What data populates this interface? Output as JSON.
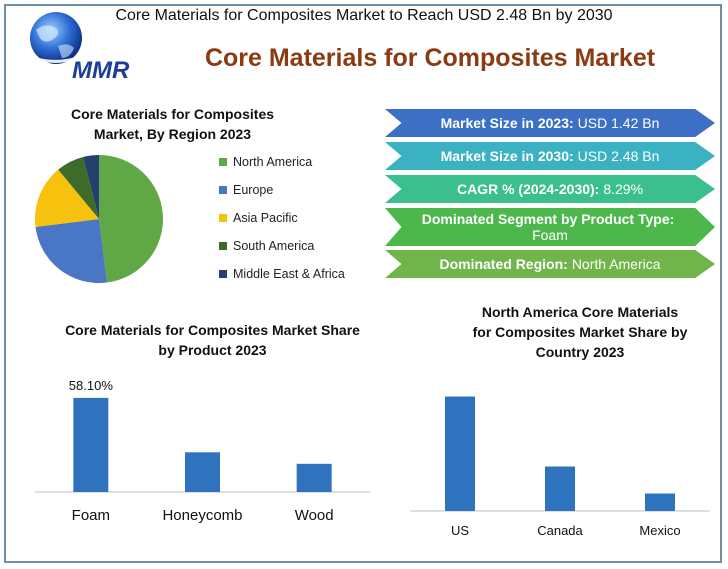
{
  "header": {
    "top_title": "Core Materials for Composites Market to Reach USD 2.48 Bn by 2030",
    "main_title": "Core Materials for Composites Market",
    "logo_text": "MMR"
  },
  "pie_section": {
    "title_line1": "Core Materials for Composites",
    "title_line2": "Market, By Region 2023"
  },
  "stats": [
    {
      "label": "Market Size in 2023:",
      "value": "USD 1.42 Bn",
      "color": "#3d6fc4"
    },
    {
      "label": "Market Size in 2030:",
      "value": "USD  2.48 Bn",
      "color": "#3ab2c1"
    },
    {
      "label": "CAGR % (2024-2030):",
      "value": "8.29%",
      "color": "#3bbf8f"
    },
    {
      "label": "Dominated Segment by Product Type:",
      "value": "Foam",
      "color": "#4cb84c"
    },
    {
      "label": "Dominated Region:",
      "value": "North America",
      "color": "#6fb54a"
    }
  ],
  "product_section": {
    "title_line1": "Core Materials for Composites Market Share",
    "title_line2": "by Product 2023"
  },
  "country_section": {
    "title_line1": "North America Core Materials",
    "title_line2": "for Composites Market Share by",
    "title_line3": "Country 2023"
  },
  "chart_data": [
    {
      "type": "pie",
      "title": "Core Materials for Composites Market, By Region 2023",
      "categories": [
        "North America",
        "Europe",
        "Asia Pacific",
        "South America",
        "Middle East & Africa"
      ],
      "values": [
        48,
        25,
        16,
        7,
        4
      ],
      "colors": [
        "#5fa845",
        "#4a76c6",
        "#f6c20e",
        "#3f6b2a",
        "#23406e"
      ],
      "legend_position": "right"
    },
    {
      "type": "bar",
      "title": "Core Materials for Composites Market Share by Product 2023",
      "categories": [
        "Foam",
        "Honeycomb",
        "Wood"
      ],
      "values": [
        58.1,
        24.5,
        17.4
      ],
      "data_labels": [
        "58.10%",
        "",
        ""
      ],
      "color": "#2f72bd",
      "ylim": [
        0,
        100
      ],
      "grid": false
    },
    {
      "type": "bar",
      "title": "North America Core Materials for Composites Market Share by Country 2023",
      "categories": [
        "US",
        "Canada",
        "Mexico"
      ],
      "values": [
        72,
        28,
        11
      ],
      "color": "#2f72bd",
      "ylim": [
        0,
        100
      ],
      "grid": false
    }
  ]
}
